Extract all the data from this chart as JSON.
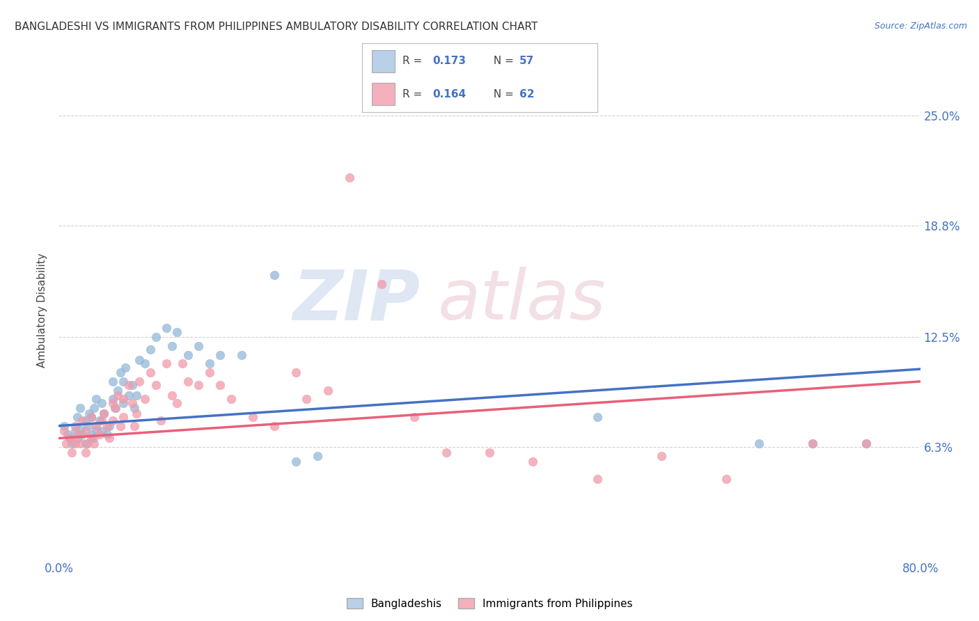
{
  "title": "BANGLADESHI VS IMMIGRANTS FROM PHILIPPINES AMBULATORY DISABILITY CORRELATION CHART",
  "source": "Source: ZipAtlas.com",
  "ylabel": "Ambulatory Disability",
  "x_min": 0.0,
  "x_max": 0.8,
  "y_min": 0.0,
  "y_max": 0.28,
  "y_ticks": [
    0.063,
    0.125,
    0.188,
    0.25
  ],
  "y_tick_labels": [
    "6.3%",
    "12.5%",
    "18.8%",
    "25.0%"
  ],
  "blue_line_color": "#4472C4",
  "pink_line_color": "#E8607A",
  "blue_dot_color": "#93B8D8",
  "pink_dot_color": "#F09AAA",
  "legend_blue_fill": "#B8D0E8",
  "legend_pink_fill": "#F4B0BC",
  "R_blue": 0.173,
  "N_blue": 57,
  "R_pink": 0.164,
  "N_pink": 62,
  "legend_label1": "Bangladeshis",
  "legend_label2": "Immigrants from Philippines",
  "watermark_zip": "ZIP",
  "watermark_atlas": "atlas",
  "grid_color": "#CCCCCC",
  "background_color": "#FFFFFF",
  "tick_label_color": "#4472C4",
  "blue_scatter_x": [
    0.005,
    0.008,
    0.01,
    0.012,
    0.015,
    0.017,
    0.018,
    0.02,
    0.02,
    0.022,
    0.025,
    0.025,
    0.027,
    0.028,
    0.03,
    0.03,
    0.032,
    0.033,
    0.035,
    0.035,
    0.038,
    0.04,
    0.04,
    0.042,
    0.045,
    0.047,
    0.05,
    0.05,
    0.052,
    0.055,
    0.057,
    0.06,
    0.06,
    0.062,
    0.065,
    0.068,
    0.07,
    0.072,
    0.075,
    0.08,
    0.085,
    0.09,
    0.1,
    0.105,
    0.11,
    0.12,
    0.13,
    0.14,
    0.15,
    0.17,
    0.2,
    0.22,
    0.24,
    0.5,
    0.65,
    0.7,
    0.75
  ],
  "blue_scatter_y": [
    0.075,
    0.07,
    0.068,
    0.065,
    0.072,
    0.08,
    0.068,
    0.073,
    0.085,
    0.07,
    0.065,
    0.078,
    0.075,
    0.082,
    0.07,
    0.08,
    0.068,
    0.085,
    0.073,
    0.09,
    0.078,
    0.072,
    0.088,
    0.082,
    0.07,
    0.075,
    0.09,
    0.1,
    0.085,
    0.095,
    0.105,
    0.088,
    0.1,
    0.108,
    0.092,
    0.098,
    0.085,
    0.092,
    0.112,
    0.11,
    0.118,
    0.125,
    0.13,
    0.12,
    0.128,
    0.115,
    0.12,
    0.11,
    0.115,
    0.115,
    0.16,
    0.055,
    0.058,
    0.08,
    0.065,
    0.065,
    0.065
  ],
  "pink_scatter_x": [
    0.005,
    0.007,
    0.01,
    0.012,
    0.015,
    0.015,
    0.018,
    0.02,
    0.022,
    0.025,
    0.025,
    0.027,
    0.03,
    0.03,
    0.033,
    0.035,
    0.038,
    0.04,
    0.042,
    0.045,
    0.047,
    0.05,
    0.05,
    0.053,
    0.055,
    0.057,
    0.06,
    0.06,
    0.065,
    0.068,
    0.07,
    0.072,
    0.075,
    0.08,
    0.085,
    0.09,
    0.095,
    0.1,
    0.105,
    0.11,
    0.115,
    0.12,
    0.13,
    0.14,
    0.15,
    0.16,
    0.18,
    0.2,
    0.22,
    0.23,
    0.25,
    0.27,
    0.3,
    0.33,
    0.36,
    0.4,
    0.44,
    0.5,
    0.56,
    0.62,
    0.7,
    0.75
  ],
  "pink_scatter_y": [
    0.072,
    0.065,
    0.068,
    0.06,
    0.065,
    0.075,
    0.07,
    0.065,
    0.078,
    0.06,
    0.072,
    0.065,
    0.068,
    0.08,
    0.065,
    0.075,
    0.07,
    0.078,
    0.082,
    0.075,
    0.068,
    0.088,
    0.078,
    0.085,
    0.092,
    0.075,
    0.08,
    0.09,
    0.098,
    0.088,
    0.075,
    0.082,
    0.1,
    0.09,
    0.105,
    0.098,
    0.078,
    0.11,
    0.092,
    0.088,
    0.11,
    0.1,
    0.098,
    0.105,
    0.098,
    0.09,
    0.08,
    0.075,
    0.105,
    0.09,
    0.095,
    0.215,
    0.155,
    0.08,
    0.06,
    0.06,
    0.055,
    0.045,
    0.058,
    0.045,
    0.065,
    0.065
  ]
}
